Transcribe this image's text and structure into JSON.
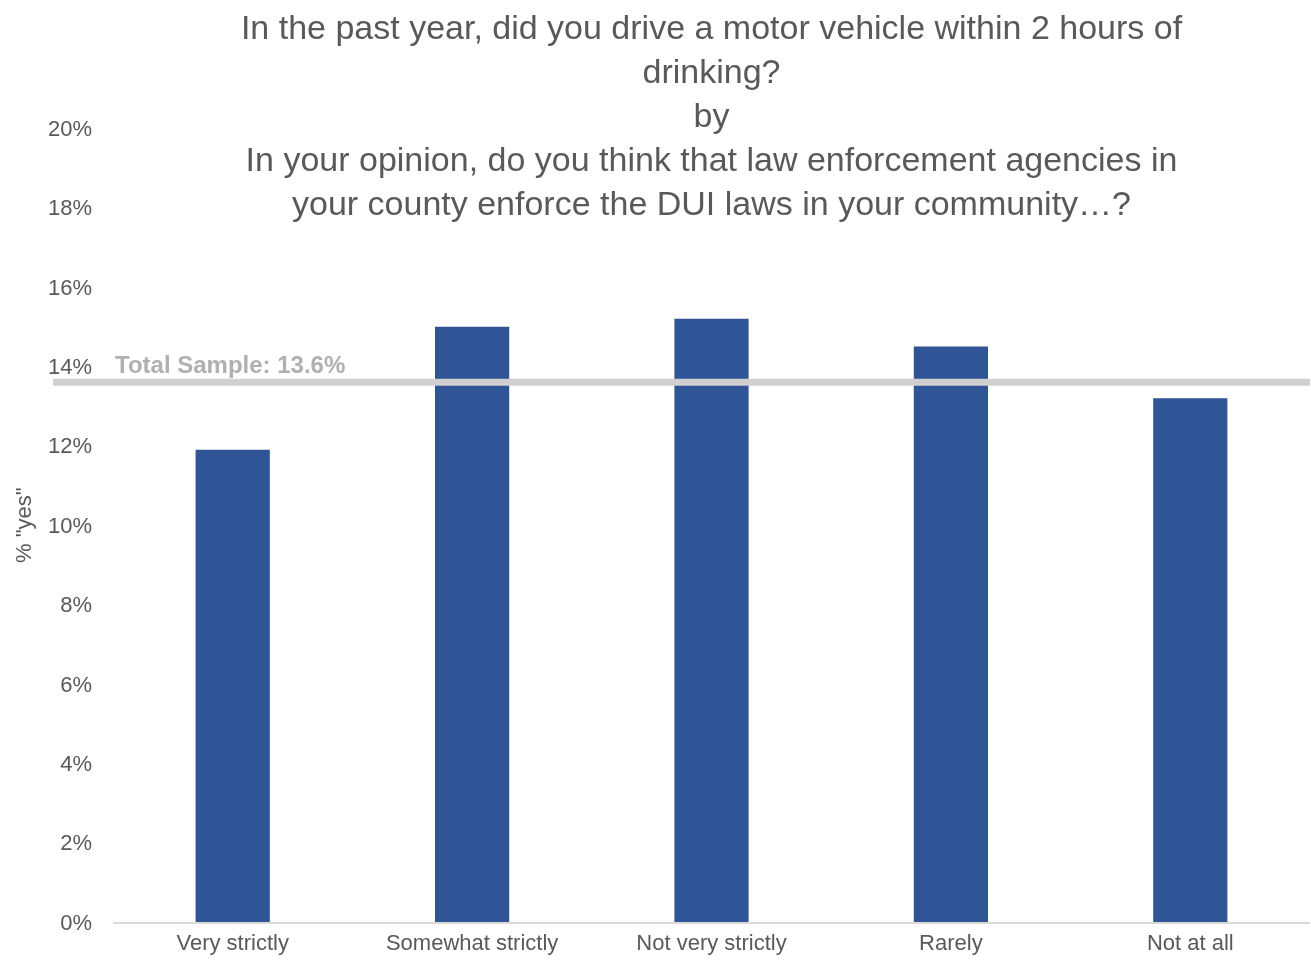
{
  "chart_data": {
    "type": "bar",
    "title": "In the past year, did you drive a motor vehicle within 2 hours of\ndrinking?\nby\nIn your opinion, do you think that law enforcement agencies in\nyour county enforce the DUI laws in your community…?",
    "ylabel": "% \"yes\"",
    "categories": [
      "Very strictly",
      "Somewhat strictly",
      "Not very strictly",
      "Rarely",
      "Not at all"
    ],
    "values": [
      11.9,
      15.0,
      15.2,
      14.5,
      13.2
    ],
    "color": "#2f5597",
    "ylim": [
      0,
      20
    ],
    "yticks": [
      {
        "value": 0,
        "label": "0%"
      },
      {
        "value": 2,
        "label": "2%"
      },
      {
        "value": 4,
        "label": "4%"
      },
      {
        "value": 6,
        "label": "6%"
      },
      {
        "value": 8,
        "label": "8%"
      },
      {
        "value": 10,
        "label": "10%"
      },
      {
        "value": 12,
        "label": "12%"
      },
      {
        "value": 14,
        "label": "14%"
      },
      {
        "value": 16,
        "label": "16%"
      },
      {
        "value": 18,
        "label": "18%"
      },
      {
        "value": 20,
        "label": "20%"
      }
    ],
    "ref_lines": [
      {
        "axis": "y",
        "value": 13.6,
        "label": "Total Sample: 13.6%",
        "color": "#d0d0d0"
      }
    ],
    "grid": false,
    "legend": false
  }
}
